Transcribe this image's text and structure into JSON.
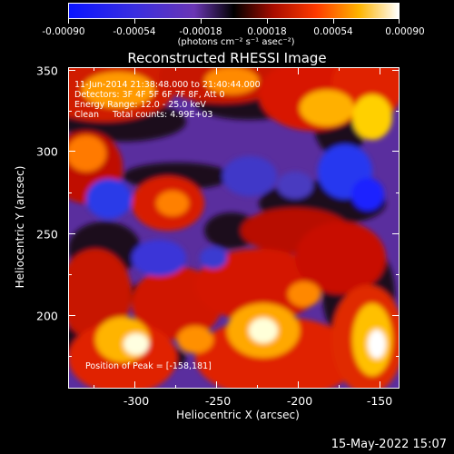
{
  "colorbar": {
    "tick_labels": [
      "-0.00090",
      "-0.00054",
      "-0.00018",
      "0.00018",
      "0.00054",
      "0.00090"
    ],
    "unit_label": "(photons cm⁻² s⁻¹ asec⁻²)"
  },
  "plot": {
    "title": "Reconstructed RHESSI Image",
    "annotations": {
      "line1": "11-Jun-2014 21:38:48.000 to 21:40:44.000",
      "line2": "Detectors: 3F 4F 5F 6F 7F 8F, Att 0",
      "line3": "Energy Range: 12.0 - 25.0 keV",
      "line4": "Clean     Total counts: 4.99E+03",
      "peak": "Position of Peak = [-158,181]"
    },
    "x_title": "Heliocentric X (arcsec)",
    "y_title": "Heliocentric Y (arcsec)",
    "x_tick_labels": [
      "-300",
      "-250",
      "-200",
      "-150"
    ],
    "y_tick_labels": [
      "350",
      "300",
      "250",
      "200"
    ],
    "x_range": [
      -340,
      -150
    ],
    "y_range": [
      155,
      350
    ]
  },
  "footer": {
    "timestamp": "15-May-2022 15:07"
  },
  "colors": {
    "colormap": [
      "#0a1aff",
      "#5a3ec8",
      "#7a3aa8",
      "#000000",
      "#c81000",
      "#ff5a00",
      "#ffc800",
      "#ffffff"
    ]
  }
}
